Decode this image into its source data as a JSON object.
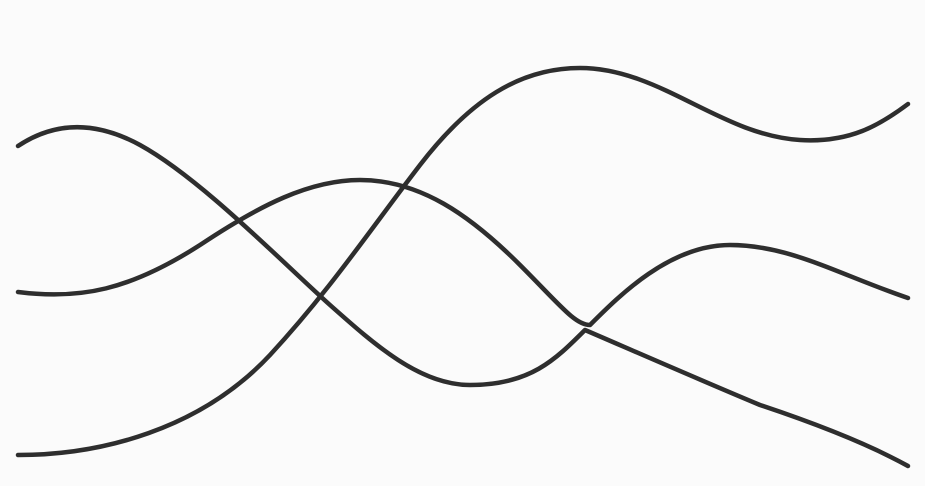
{
  "background_color": "#fbfbfb",
  "stroke_color": "#2e2e2e",
  "curves": [
    {
      "id": "curve-a"
    },
    {
      "id": "curve-b"
    },
    {
      "id": "curve-c"
    }
  ]
}
